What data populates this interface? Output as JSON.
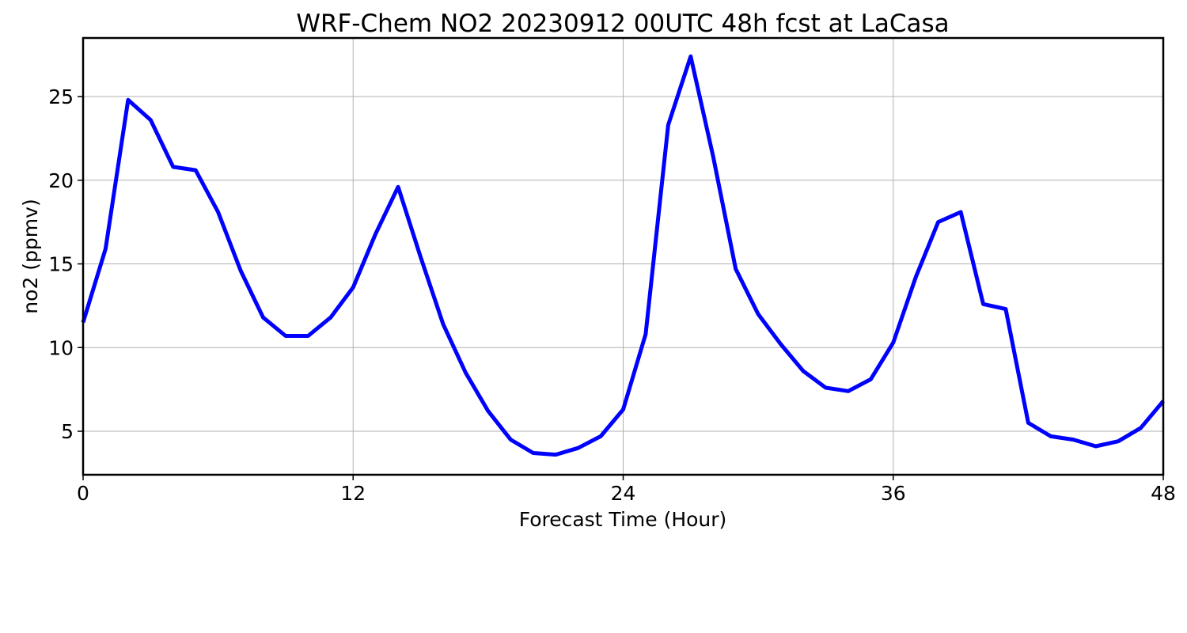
{
  "chart_data": {
    "type": "line",
    "title": "WRF-Chem NO2  20230912 00UTC 48h fcst at LaCasa",
    "xlabel": "Forecast Time (Hour)",
    "ylabel": "no2  (ppmv)",
    "xlim": [
      0,
      48
    ],
    "ylim": [
      2.4,
      28.5
    ],
    "xticks": [
      0,
      12,
      24,
      36,
      48
    ],
    "yticks": [
      5,
      10,
      15,
      20,
      25
    ],
    "grid": true,
    "legend": "none",
    "series": [
      {
        "color": "#0000ff",
        "x": [
          0,
          1,
          2,
          3,
          4,
          5,
          6,
          7,
          8,
          9,
          10,
          11,
          12,
          13,
          14,
          15,
          16,
          17,
          18,
          19,
          20,
          21,
          22,
          23,
          24,
          25,
          26,
          27,
          28,
          29,
          30,
          31,
          32,
          33,
          34,
          35,
          36,
          37,
          38,
          39,
          40,
          41,
          42,
          43,
          44,
          45,
          46,
          47,
          48
        ],
        "values": [
          11.5,
          15.9,
          24.8,
          23.6,
          20.8,
          20.6,
          18.1,
          14.6,
          11.8,
          10.7,
          10.7,
          11.8,
          13.6,
          16.8,
          19.6,
          15.4,
          11.4,
          8.5,
          6.2,
          4.5,
          3.7,
          3.6,
          4.0,
          4.7,
          6.3,
          10.8,
          23.3,
          27.4,
          21.4,
          14.7,
          12.0,
          10.2,
          8.6,
          7.6,
          7.4,
          8.1,
          10.3,
          14.2,
          17.5,
          18.1,
          12.6,
          12.3,
          5.5,
          4.7,
          4.5,
          4.1,
          4.4,
          5.2,
          6.8
        ]
      }
    ]
  }
}
